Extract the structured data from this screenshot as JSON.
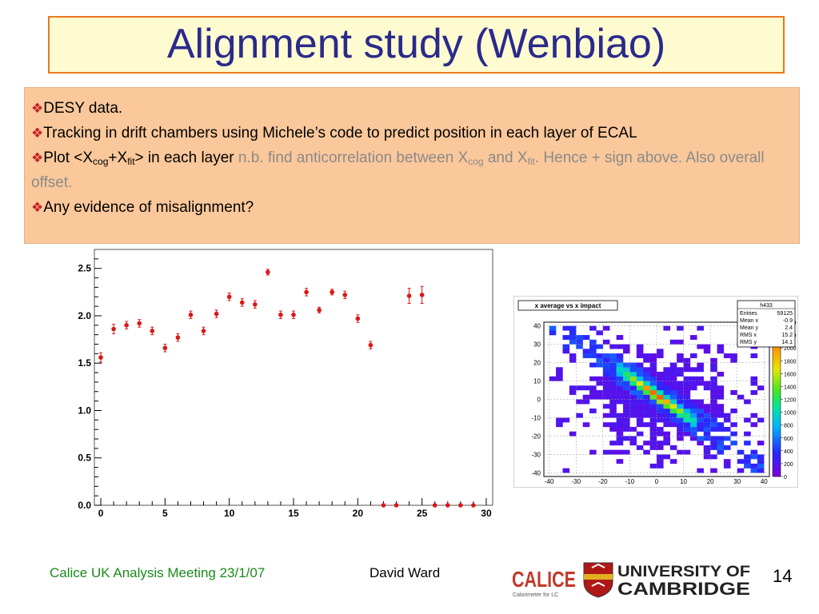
{
  "slide": {
    "title": "Alignment study (Wenbiao)",
    "bullets": {
      "b1": "DESY data.",
      "b2": "Tracking in drift chambers using Michele’s code to predict position in each layer of ECAL",
      "b3": {
        "pre": "Plot <X",
        "sub1": "cog",
        "plus": "+X",
        "sub2": "fit",
        "post": "> in each layer ",
        "note_a": "n.b. find anticorrelation between X",
        "note_sub1": "cog",
        "and_text": " and X",
        "note_sub2": "fit",
        "note_b": ". Hence + sign above.  Also overall offset."
      },
      "b4": "Any evidence of misalignment?"
    },
    "footer": {
      "meeting": "Calice UK Analysis Meeting 23/1/07",
      "author": "David Ward",
      "page": "14"
    },
    "logos": {
      "calice_text": "CALICE",
      "calice_sub": "Calorimeter for LC",
      "cam_line1": "UNIVERSITY OF",
      "cam_line2": "CAMBRIDGE"
    }
  },
  "chart_data": [
    {
      "type": "scatter",
      "title": "",
      "xlabel": "",
      "ylabel": "",
      "xlim": [
        -0.5,
        30.5
      ],
      "ylim": [
        0,
        2.7
      ],
      "xticks": [
        0,
        5,
        10,
        15,
        20,
        25,
        30
      ],
      "yticks": [
        0.0,
        0.5,
        1.0,
        1.5,
        2.0,
        2.5
      ],
      "ytick_labels": [
        "0.0",
        "0.5",
        "1.0",
        "1.5",
        "2.0",
        "2.5"
      ],
      "points": [
        {
          "x": 0,
          "y": 1.56,
          "err": 0.05
        },
        {
          "x": 1,
          "y": 1.86,
          "err": 0.05
        },
        {
          "x": 2,
          "y": 1.9,
          "err": 0.04
        },
        {
          "x": 3,
          "y": 1.92,
          "err": 0.04
        },
        {
          "x": 4,
          "y": 1.84,
          "err": 0.04
        },
        {
          "x": 5,
          "y": 1.66,
          "err": 0.04
        },
        {
          "x": 6,
          "y": 1.77,
          "err": 0.04
        },
        {
          "x": 7,
          "y": 2.01,
          "err": 0.04
        },
        {
          "x": 8,
          "y": 1.84,
          "err": 0.04
        },
        {
          "x": 9,
          "y": 2.02,
          "err": 0.04
        },
        {
          "x": 10,
          "y": 2.2,
          "err": 0.04
        },
        {
          "x": 11,
          "y": 2.14,
          "err": 0.04
        },
        {
          "x": 12,
          "y": 2.12,
          "err": 0.04
        },
        {
          "x": 13,
          "y": 2.46,
          "err": 0.03
        },
        {
          "x": 14,
          "y": 2.01,
          "err": 0.04
        },
        {
          "x": 15,
          "y": 2.01,
          "err": 0.04
        },
        {
          "x": 16,
          "y": 2.25,
          "err": 0.04
        },
        {
          "x": 17,
          "y": 2.06,
          "err": 0.03
        },
        {
          "x": 18,
          "y": 2.25,
          "err": 0.03
        },
        {
          "x": 19,
          "y": 2.22,
          "err": 0.04
        },
        {
          "x": 20,
          "y": 1.97,
          "err": 0.04
        },
        {
          "x": 21,
          "y": 1.69,
          "err": 0.04
        },
        {
          "x": 22,
          "y": 0.0,
          "err": 0
        },
        {
          "x": 23,
          "y": 0.0,
          "err": 0
        },
        {
          "x": 24,
          "y": 2.21,
          "err": 0.08
        },
        {
          "x": 25,
          "y": 2.22,
          "err": 0.09
        },
        {
          "x": 26,
          "y": 0.0,
          "err": 0
        },
        {
          "x": 27,
          "y": 0.0,
          "err": 0
        },
        {
          "x": 28,
          "y": 0.0,
          "err": 0
        },
        {
          "x": 29,
          "y": 0.0,
          "err": 0
        }
      ],
      "color": "#d81818"
    },
    {
      "type": "heatmap",
      "title": "x average vs x impact",
      "xlabel": "",
      "ylabel": "",
      "xlim": [
        -42,
        42
      ],
      "ylim": [
        -42,
        42
      ],
      "xticks": [
        -40,
        -30,
        -20,
        -10,
        0,
        10,
        20,
        30,
        40
      ],
      "yticks": [
        -40,
        -30,
        -20,
        -10,
        0,
        10,
        20,
        30,
        40
      ],
      "zlim": [
        0,
        2400
      ],
      "zticks": [
        0,
        200,
        400,
        600,
        800,
        1000,
        1200,
        1400,
        1600,
        1800,
        2000,
        2200,
        2400
      ],
      "stats": {
        "name": "h433",
        "rows": [
          {
            "label": "Entries",
            "value": "59125"
          },
          {
            "label": "Mean x",
            "value": "-0.9"
          },
          {
            "label": "Mean y",
            "value": "2.4"
          },
          {
            "label": "RMS x",
            "value": "15.2"
          },
          {
            "label": "RMS y",
            "value": "14.1"
          }
        ]
      },
      "band": {
        "slope": -1.0,
        "intercept": 2.0,
        "core_range": [
          -16,
          16
        ]
      }
    }
  ]
}
